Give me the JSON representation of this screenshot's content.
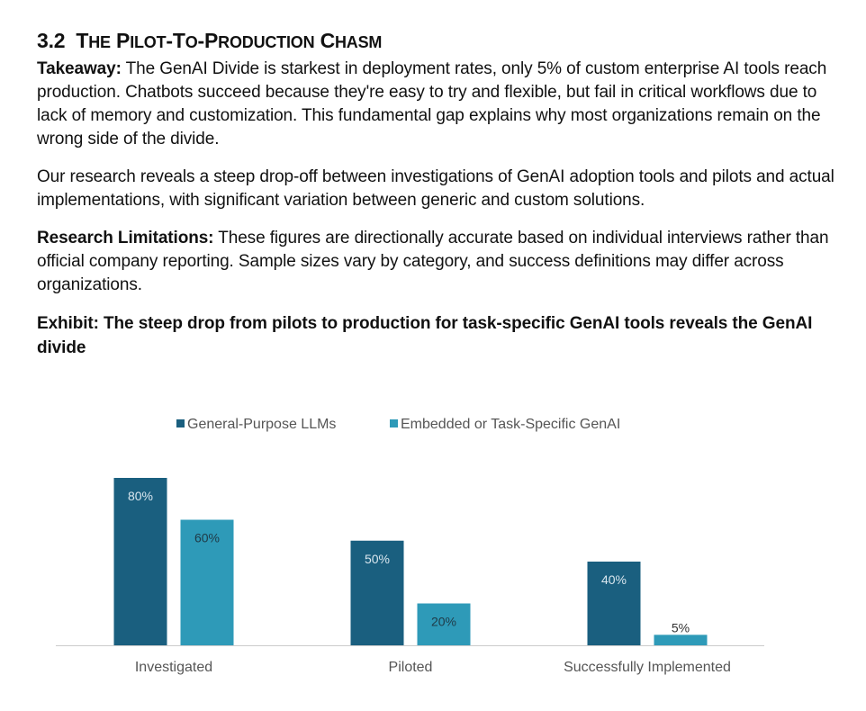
{
  "section": {
    "number": "3.2",
    "title": "The Pilot-to-Production Chasm"
  },
  "takeaway": {
    "label": "Takeaway:",
    "text": " The GenAI Divide is starkest in deployment rates, only 5% of custom enterprise AI tools reach production. Chatbots succeed because they're easy to try and flexible, but fail in critical workflows due to lack of memory and customization. This fundamental gap explains why most organizations remain on the wrong side of the divide."
  },
  "research_paragraph": "Our research reveals a steep drop-off between investigations of GenAI adoption tools and pilots and actual implementations, with significant variation between generic and custom solutions.",
  "limitations": {
    "label": "Research Limitations:",
    "text": " These figures are directionally accurate based on individual interviews rather than official company reporting. Sample sizes vary by category, and success definitions may differ across organizations."
  },
  "exhibit_title": "Exhibit: The steep drop from pilots to production for task-specific GenAI tools reveals the GenAI divide",
  "chart_data": {
    "type": "bar",
    "categories": [
      "Investigated",
      "Piloted",
      "Successfully Implemented"
    ],
    "series": [
      {
        "name": "General-Purpose LLMs",
        "values": [
          80,
          50,
          40
        ],
        "labels": [
          "80%",
          "50%",
          "40%"
        ],
        "color": "#1a5f7f",
        "label_color": "#d9e6ee"
      },
      {
        "name": "Embedded or Task-Specific GenAI",
        "values": [
          60,
          20,
          5
        ],
        "labels": [
          "60%",
          "20%",
          "5%"
        ],
        "color": "#2e9ab8",
        "label_color": "#1f3a47"
      }
    ],
    "ylim": [
      0,
      100
    ],
    "legend_position": "top-center",
    "grid": false,
    "xlabel": "",
    "ylabel": "",
    "axis_color": "#cccccc"
  }
}
